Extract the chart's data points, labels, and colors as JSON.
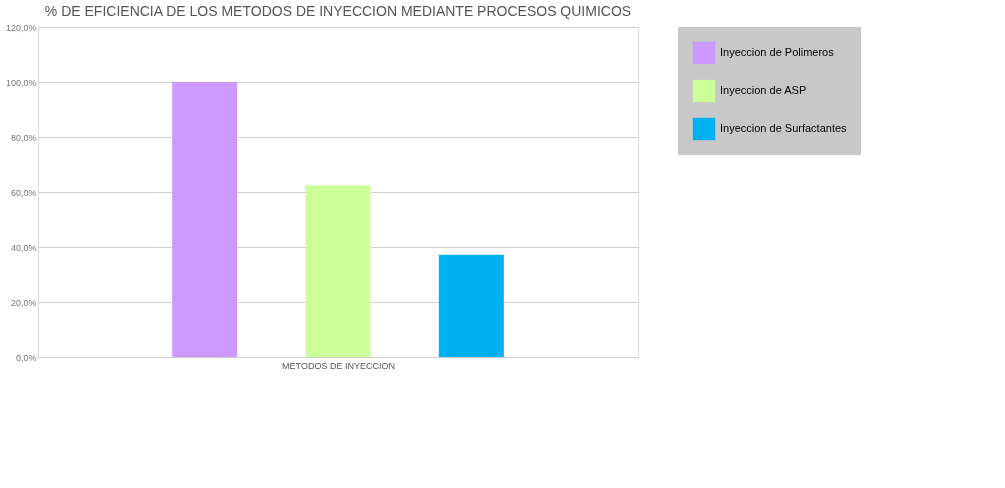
{
  "chart_data": {
    "type": "bar",
    "title": "% DE EFICIENCIA DE LOS METODOS DE INYECCION MEDIANTE PROCESOS QUIMICOS",
    "xlabel": "METODOS DE INYECCION",
    "categories": [
      null
    ],
    "series": [
      {
        "name": "Inyeccion de Polimeros",
        "color": "#cc99ff",
        "values": [
          100
        ]
      },
      {
        "name": "Inyeccion de ASP",
        "color": "#ccff99",
        "values": [
          62.5
        ]
      },
      {
        "name": "Inyeccion de Surfactantes",
        "color": "#00b0f0",
        "values": [
          37.2
        ]
      }
    ],
    "ylim": [
      0,
      120
    ],
    "yticks": [
      {
        "value": 0,
        "label": "0,0%"
      },
      {
        "value": 20,
        "label": "20,0%"
      },
      {
        "value": 40,
        "label": "40,0%"
      },
      {
        "value": 60,
        "label": "60,0%"
      },
      {
        "value": 80,
        "label": "80,0%"
      },
      {
        "value": 100,
        "label": "100,0%"
      },
      {
        "value": 120,
        "label": "120,0%"
      }
    ],
    "grid": "y",
    "legend": "right"
  }
}
